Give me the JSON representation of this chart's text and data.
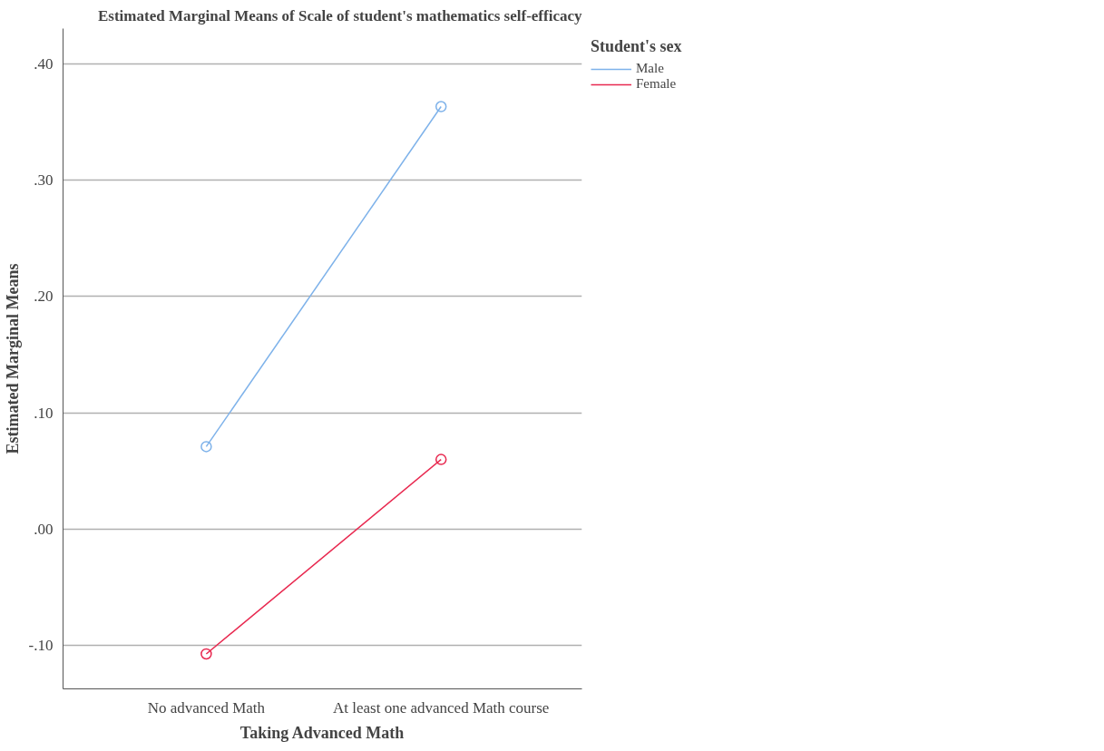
{
  "chart_data": {
    "type": "line",
    "title": "Estimated Marginal Means of Scale of student's mathematics self-efficacy",
    "xlabel": "Taking Advanced Math",
    "ylabel": "Estimated Marginal Means",
    "legend_title": "Student's sex",
    "categories": [
      "No advanced Math",
      "At least one advanced Math course"
    ],
    "series": [
      {
        "name": "Male",
        "color": "#7eb2ea",
        "values": [
          0.071,
          0.363
        ]
      },
      {
        "name": "Female",
        "color": "#e8284f",
        "values": [
          -0.107,
          0.06
        ]
      }
    ],
    "ylim": [
      -0.137,
      0.43
    ],
    "yticks": [
      {
        "value": -0.1,
        "label": "-.10"
      },
      {
        "value": 0,
        "label": ".00"
      },
      {
        "value": 0.1,
        "label": ".10"
      },
      {
        "value": 0.2,
        "label": ".20"
      },
      {
        "value": 0.3,
        "label": ".30"
      },
      {
        "value": 0.4,
        "label": ".40"
      }
    ],
    "grid": "y",
    "legend": "top right",
    "marker": "circle",
    "line_style": "solid"
  }
}
